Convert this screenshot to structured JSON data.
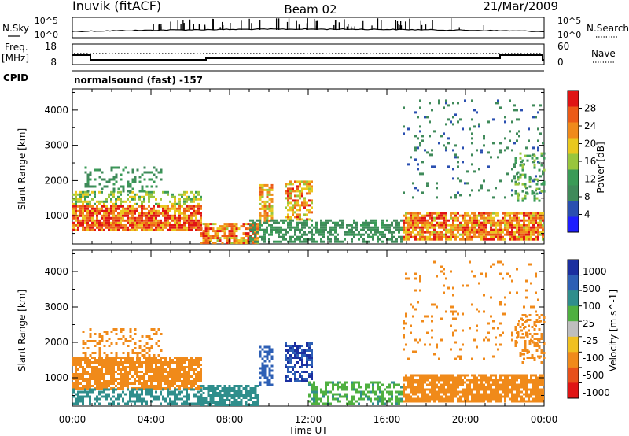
{
  "header": {
    "station": "Inuvik (fitACF)",
    "beam": "Beam 02",
    "date": "21/Mar/2009"
  },
  "nsky_panel": {
    "left_label": "N.Sky",
    "right_label": "N.Search",
    "left_ticks": [
      "10^5",
      "10^0"
    ],
    "right_ticks": [
      "10^5",
      "10^0"
    ]
  },
  "freq_panel": {
    "left_label_1": "Freq.",
    "left_label_2": "[MHz]",
    "right_label": "Nave",
    "left_ticks": [
      "18",
      "8"
    ],
    "right_ticks": [
      "60",
      "0"
    ]
  },
  "cpid_panel": {
    "label": "CPID",
    "text": "normalsound (fast) -157"
  },
  "colors": {
    "power": [
      "#1e1eff",
      "#2a4fb0",
      "#3f8a5a",
      "#3a9b57",
      "#98c63c",
      "#e9c81e",
      "#f08a1a",
      "#ec5a16",
      "#e01414"
    ],
    "velocity": [
      "#1b2fa0",
      "#2d5fb5",
      "#2f8e8c",
      "#4fb040",
      "#bebebe",
      "#f0c020",
      "#f08a1a",
      "#e8501a",
      "#e01414"
    ]
  },
  "chart_data": [
    {
      "type": "heatmap",
      "name": "power",
      "ylabel": "Slant Range [km]",
      "xlabel": "",
      "x_ticks": [
        "00:00",
        "04:00",
        "08:00",
        "12:00",
        "16:00",
        "20:00",
        "00:00"
      ],
      "xlim_hours": [
        0,
        24
      ],
      "ylim": [
        200,
        4600
      ],
      "y_ticks": [
        1000,
        2000,
        3000,
        4000
      ],
      "colorbar": {
        "label": "Power [dB]",
        "ticks": [
          "4",
          "8",
          "12",
          "16",
          "20",
          "24",
          "28"
        ],
        "range": [
          0,
          32
        ]
      },
      "regions": [
        {
          "t0": 0.0,
          "t1": 6.5,
          "r0": 600,
          "r1": 1300,
          "value": 27,
          "density": 0.85
        },
        {
          "t0": 0.0,
          "t1": 6.5,
          "r0": 1300,
          "r1": 1700,
          "value": 16,
          "density": 0.45
        },
        {
          "t0": 0.5,
          "t1": 4.5,
          "r0": 1700,
          "r1": 2400,
          "value": 9,
          "density": 0.25
        },
        {
          "t0": 6.5,
          "t1": 9.5,
          "r0": 250,
          "r1": 800,
          "value": 24,
          "density": 0.8
        },
        {
          "t0": 9.5,
          "t1": 10.2,
          "r0": 800,
          "r1": 1900,
          "value": 22,
          "density": 0.6
        },
        {
          "t0": 10.8,
          "t1": 12.2,
          "r0": 900,
          "r1": 2000,
          "value": 23,
          "density": 0.6
        },
        {
          "t0": 9.0,
          "t1": 16.8,
          "r0": 250,
          "r1": 900,
          "value": 9,
          "density": 0.55
        },
        {
          "t0": 16.8,
          "t1": 24.0,
          "r0": 300,
          "r1": 1100,
          "value": 25,
          "density": 0.85
        },
        {
          "t0": 16.8,
          "t1": 24.0,
          "r0": 1500,
          "r1": 4300,
          "value": 7,
          "density": 0.08
        },
        {
          "t0": 22.5,
          "t1": 24.0,
          "r0": 1400,
          "r1": 2800,
          "value": 13,
          "density": 0.25
        }
      ]
    },
    {
      "type": "heatmap",
      "name": "velocity",
      "ylabel": "Slant Range [km]",
      "xlabel": "Time UT",
      "x_ticks": [
        "00:00",
        "04:00",
        "08:00",
        "12:00",
        "16:00",
        "20:00",
        "00:00"
      ],
      "xlim_hours": [
        0,
        24
      ],
      "ylim": [
        200,
        4600
      ],
      "y_ticks": [
        1000,
        2000,
        3000,
        4000
      ],
      "colorbar": {
        "label": "Velocity [m s^-1]",
        "ticks": [
          "1000",
          "500",
          "100",
          "25",
          "-25",
          "-100",
          "-500",
          "-1000"
        ]
      },
      "regions": [
        {
          "t0": 0.0,
          "t1": 6.5,
          "r0": 700,
          "r1": 1600,
          "value": -100,
          "density": 0.8
        },
        {
          "t0": 0.0,
          "t1": 6.5,
          "r0": 250,
          "r1": 700,
          "value": 100,
          "density": 0.55
        },
        {
          "t0": 0.5,
          "t1": 4.5,
          "r0": 1600,
          "r1": 2400,
          "value": -150,
          "density": 0.25
        },
        {
          "t0": 6.5,
          "t1": 9.5,
          "r0": 250,
          "r1": 800,
          "value": 100,
          "density": 0.75
        },
        {
          "t0": 9.5,
          "t1": 10.2,
          "r0": 800,
          "r1": 1900,
          "value": 500,
          "density": 0.6
        },
        {
          "t0": 10.8,
          "t1": 12.2,
          "r0": 900,
          "r1": 2000,
          "value": 700,
          "density": 0.6
        },
        {
          "t0": 12.0,
          "t1": 16.8,
          "r0": 250,
          "r1": 900,
          "value": 50,
          "density": 0.55
        },
        {
          "t0": 16.8,
          "t1": 24.0,
          "r0": 300,
          "r1": 1100,
          "value": -200,
          "density": 0.85
        },
        {
          "t0": 16.8,
          "t1": 24.0,
          "r0": 1500,
          "r1": 4300,
          "value": -150,
          "density": 0.08
        },
        {
          "t0": 22.5,
          "t1": 24.0,
          "r0": 1400,
          "r1": 2800,
          "value": -100,
          "density": 0.25
        }
      ]
    }
  ]
}
